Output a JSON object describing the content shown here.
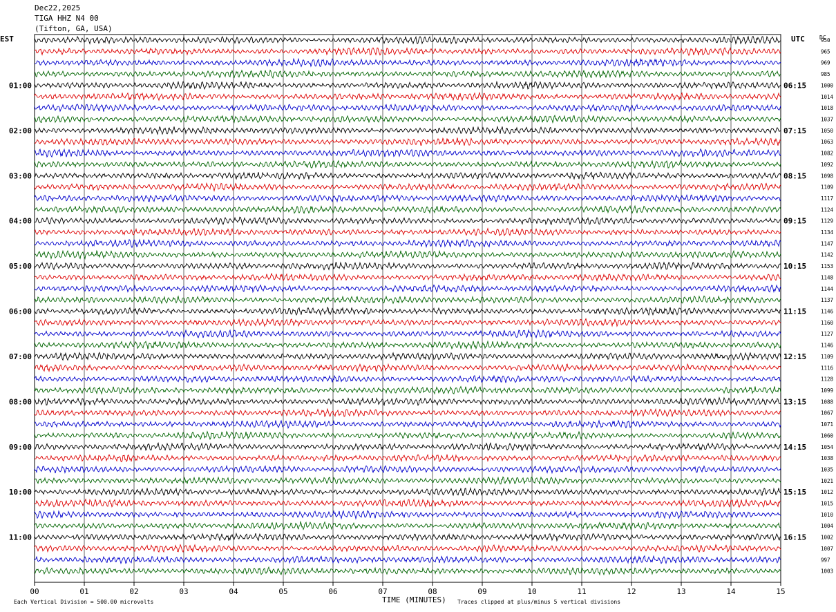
{
  "header": {
    "date": "Dec22,2025",
    "station": "TIGA HHZ N4 00",
    "location": "(Tifton, GA, USA)"
  },
  "left_zone": "EST",
  "right_zone": "UTC",
  "dc_label": "DC",
  "footer": {
    "scale_note": "Each Vertical Division =  500.00 microvolts",
    "clip_note": "Traces clipped at plus/minus 5 vertical divisions"
  },
  "colors": {
    "trace_cycle": [
      "#000000",
      "#dd0000",
      "#0000cc",
      "#006400"
    ],
    "grid": "#000000"
  },
  "chart_data": {
    "type": "line",
    "title": "",
    "xlabel": "TIME (MINUTES)",
    "x_ticks": [
      "00",
      "01",
      "02",
      "03",
      "04",
      "05",
      "06",
      "07",
      "08",
      "09",
      "10",
      "11",
      "12",
      "13",
      "14",
      "15"
    ],
    "xlim": [
      0,
      15
    ],
    "trace_count": 48,
    "est_hour_labels": [
      "01:00",
      "02:00",
      "03:00",
      "04:00",
      "05:00",
      "06:00",
      "07:00",
      "08:00",
      "09:00",
      "10:00",
      "11:00"
    ],
    "utc_hour_labels": [
      "06:15",
      "07:15",
      "08:15",
      "09:15",
      "10:15",
      "11:15",
      "12:15",
      "13:15",
      "14:15",
      "15:15",
      "16:15"
    ],
    "dc_offsets": [
      950,
      965,
      969,
      985,
      1000,
      1014,
      1018,
      1037,
      1050,
      1063,
      1082,
      1092,
      1098,
      1109,
      1117,
      1124,
      1129,
      1134,
      1147,
      1142,
      1153,
      1148,
      1144,
      1137,
      1146,
      1160,
      1127,
      1146,
      1109,
      1116,
      1128,
      1099,
      1088,
      1067,
      1071,
      1060,
      1054,
      1038,
      1035,
      1021,
      1012,
      1015,
      1010,
      1004,
      1002,
      1007,
      997,
      1003
    ]
  }
}
